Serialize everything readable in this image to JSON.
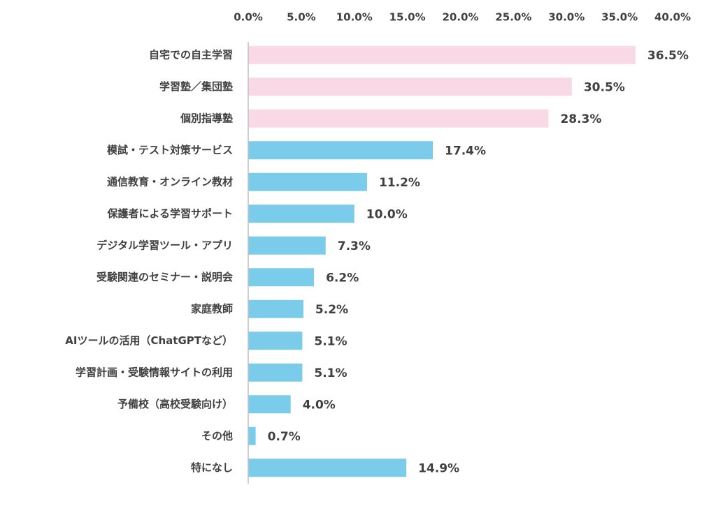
{
  "chart_data": {
    "type": "barh",
    "categories": [
      "自宅での自主学習",
      "学習塾／集団塾",
      "個別指導塾",
      "模試・テスト対策サービス",
      "通信教育・オンライン教材",
      "保護者による学習サポート",
      "デジタル学習ツール・アプリ",
      "受験関連のセミナー・説明会",
      "家庭教師",
      "AIツールの活用（ChatGPTなど）",
      "学習計画・受験情報サイトの利用",
      "予備校（高校受験向け）",
      "その他",
      "特になし"
    ],
    "values": [
      36.5,
      30.5,
      28.3,
      17.4,
      11.2,
      10.0,
      7.3,
      6.2,
      5.2,
      5.1,
      5.1,
      4.0,
      0.7,
      14.9
    ],
    "value_labels": [
      "36.5%",
      "30.5%",
      "28.3%",
      "17.4%",
      "11.2%",
      "10.0%",
      "7.3%",
      "6.2%",
      "5.2%",
      "5.1%",
      "5.1%",
      "4.0%",
      "0.7%",
      "14.9%"
    ],
    "colors": [
      "#f9d9e6",
      "#f9d9e6",
      "#f9d9e6",
      "#7accea",
      "#7accea",
      "#7accea",
      "#7accea",
      "#7accea",
      "#7accea",
      "#7accea",
      "#7accea",
      "#7accea",
      "#7accea",
      "#7accea"
    ],
    "xlim": [
      0,
      40
    ],
    "xticks": [
      {
        "value": 0,
        "label": "0.0%"
      },
      {
        "value": 5,
        "label": "5.0%"
      },
      {
        "value": 10,
        "label": "10.0%"
      },
      {
        "value": 15,
        "label": "15.0%"
      },
      {
        "value": 20,
        "label": "20.0%"
      },
      {
        "value": 25,
        "label": "25.0%"
      },
      {
        "value": 30,
        "label": "30.0%"
      },
      {
        "value": 35,
        "label": "35.0%"
      },
      {
        "value": 40,
        "label": "40.0%"
      }
    ],
    "grid": false
  }
}
